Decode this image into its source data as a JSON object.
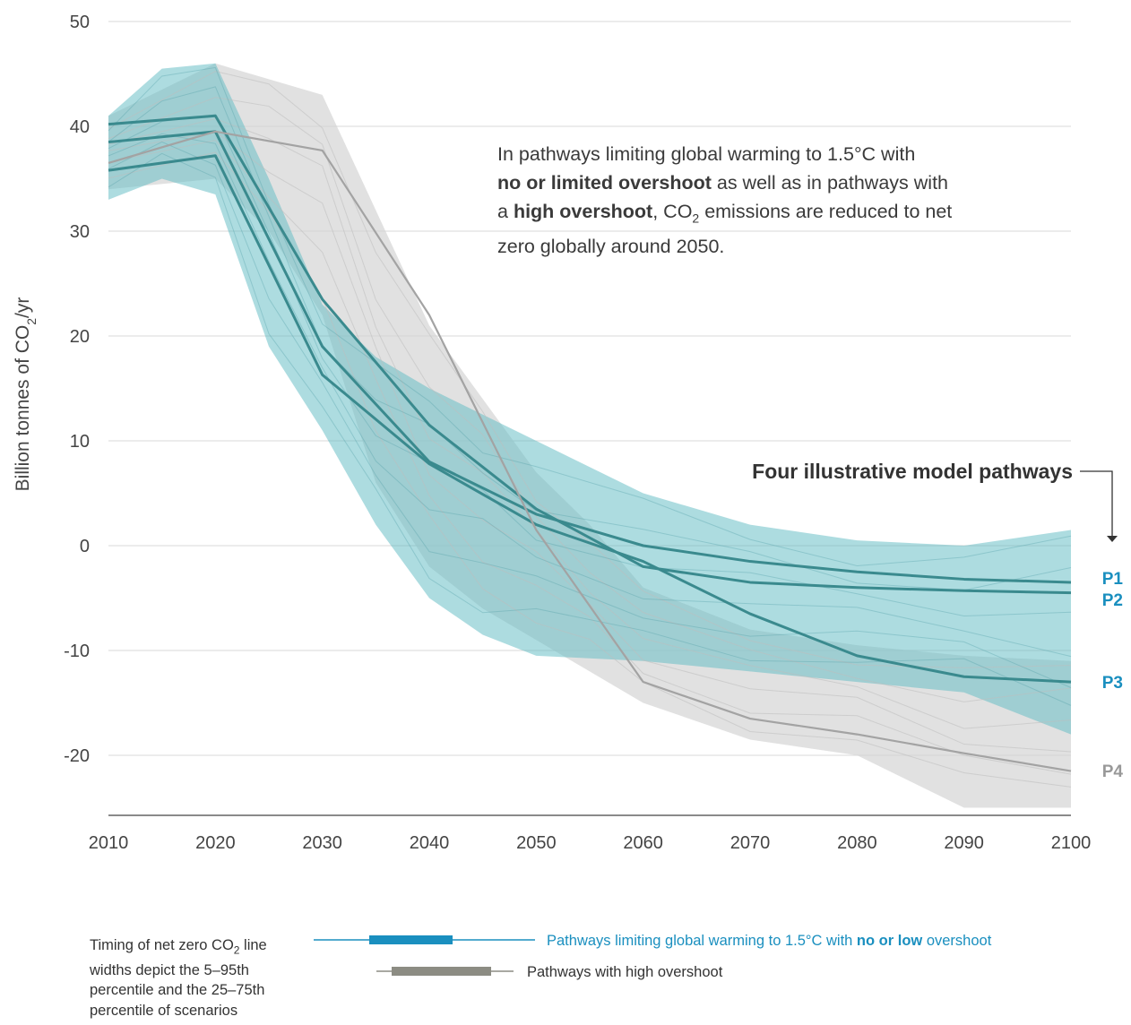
{
  "annotation": {
    "part1": "In pathways limiting global warming to 1.5°C with",
    "bold1": "no or limited overshoot",
    "part2": " as well as in pathways with a ",
    "bold2": "high overshoot",
    "part3": ", CO",
    "sub": "2",
    "part4": " emissions are reduced to net zero globally around 2050."
  },
  "pathways_heading": "Four illustrative model pathways",
  "legend": {
    "note_line1": "Timing of net zero CO",
    "note_sub": "2",
    "note_rest": " line widths depict the 5–95th percentile and the 25–75th percentile of scenarios",
    "item1_prefix": "Pathways limiting global warming to 1.5°C with ",
    "item1_bold": "no or low",
    "item1_suffix": " overshoot",
    "item2": "Pathways with high overshoot"
  },
  "colors": {
    "teal_band": "#62bcc4",
    "teal_line": "#3a8a8e",
    "grey_band": "#d4d4d4",
    "grey_line": "#a3a3a3",
    "legend_blue": "#1a8fbf",
    "legend_grey": "#8c8c83",
    "p_blue": "#1a8fbf",
    "p_grey": "#999999"
  },
  "chart_data": {
    "type": "line",
    "title": "",
    "xlabel": "",
    "ylabel": "Billion tonnes of CO2/yr",
    "xlim": [
      2010,
      2100
    ],
    "ylim": [
      -26,
      50
    ],
    "x_ticks": [
      2010,
      2020,
      2030,
      2040,
      2050,
      2060,
      2070,
      2080,
      2090,
      2100
    ],
    "y_ticks": [
      50,
      40,
      30,
      20,
      10,
      0,
      -10,
      -20
    ],
    "grid": true,
    "series": [
      {
        "name": "P1",
        "x": [
          2010,
          2020,
          2030,
          2040,
          2050,
          2060,
          2070,
          2080,
          2090,
          2100
        ],
        "values": [
          38.5,
          39.5,
          19.0,
          8.0,
          3.0,
          0.0,
          -1.5,
          -2.5,
          -3.2,
          -3.5
        ]
      },
      {
        "name": "P2",
        "x": [
          2010,
          2020,
          2030,
          2040,
          2050,
          2060,
          2070,
          2080,
          2090,
          2100
        ],
        "values": [
          40.2,
          41.0,
          23.5,
          11.5,
          3.5,
          -2.0,
          -3.5,
          -4.0,
          -4.3,
          -4.5
        ]
      },
      {
        "name": "P3",
        "x": [
          2010,
          2020,
          2030,
          2040,
          2050,
          2060,
          2070,
          2080,
          2090,
          2100
        ],
        "values": [
          35.8,
          37.2,
          16.3,
          7.8,
          2.0,
          -1.5,
          -6.5,
          -10.5,
          -12.5,
          -13.0
        ]
      },
      {
        "name": "P4",
        "x": [
          2010,
          2020,
          2030,
          2040,
          2050,
          2060,
          2070,
          2080,
          2090,
          2100
        ],
        "values": [
          36.5,
          39.5,
          37.7,
          22.0,
          1.5,
          -13.0,
          -16.5,
          -18.0,
          -19.8,
          -21.5
        ]
      }
    ],
    "bands": [
      {
        "group": "high overshoot range",
        "x": [
          2010,
          2020,
          2025,
          2030,
          2035,
          2040,
          2045,
          2050,
          2055,
          2060,
          2070,
          2080,
          2090,
          2100
        ],
        "upper": [
          41,
          46,
          44.5,
          43,
          32,
          21,
          14,
          7,
          2,
          -4,
          -8,
          -9.5,
          -10.5,
          -11
        ],
        "lower": [
          34,
          35,
          30,
          22,
          6,
          -2,
          -6,
          -9,
          -12,
          -15,
          -18.5,
          -20,
          -25,
          -25
        ]
      },
      {
        "group": "no or limited overshoot range",
        "x": [
          2010,
          2015,
          2020,
          2025,
          2030,
          2035,
          2040,
          2045,
          2050,
          2060,
          2070,
          2080,
          2090,
          2100
        ],
        "upper": [
          41,
          45.5,
          46,
          35,
          23,
          18,
          15,
          12.5,
          10,
          5,
          2,
          0.5,
          0,
          1.5
        ],
        "lower": [
          33,
          35,
          33.5,
          19,
          11,
          2,
          -5,
          -8.5,
          -10.5,
          -11,
          -12,
          -13,
          -14,
          -18
        ]
      }
    ],
    "labels": [
      "P1",
      "P2",
      "P3",
      "P4"
    ]
  }
}
